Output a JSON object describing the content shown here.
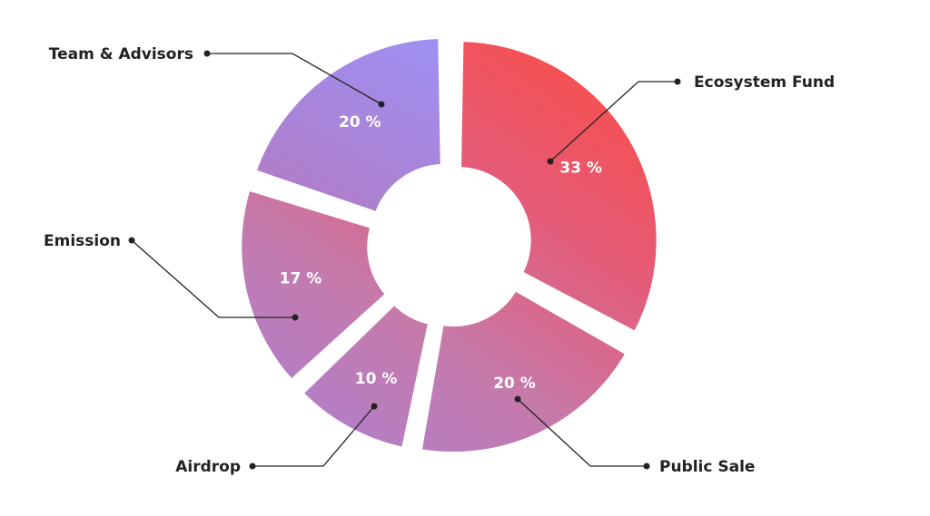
{
  "chart_data": {
    "type": "pie",
    "donut": true,
    "categories": [
      "Ecosystem Fund",
      "Public Sale",
      "Airdrop",
      "Emission",
      "Team & Advisors"
    ],
    "values": [
      33,
      20,
      10,
      17,
      20
    ],
    "value_labels": [
      "33 %",
      "20 %",
      "10 %",
      "17 %",
      "20 %"
    ],
    "legend": "callout labels around the chart",
    "gradient_colors": [
      "#ff4a3a",
      "#d56892",
      "#c07ab8",
      "#a78ce8",
      "#a590f2"
    ],
    "line_color": "#222222"
  }
}
